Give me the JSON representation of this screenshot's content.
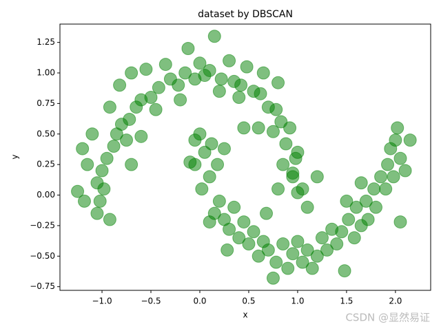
{
  "chart_data": {
    "type": "scatter",
    "title": "dataset by DBSCAN",
    "xlabel": "x",
    "ylabel": "y",
    "watermark": "CSDN @显然易证",
    "color": "#008000",
    "alpha": 0.5,
    "xlim": [
      -1.43,
      2.36
    ],
    "ylim": [
      -0.78,
      1.4
    ],
    "xticks": [
      {
        "value": -1.0,
        "label": "−1.0"
      },
      {
        "value": -0.5,
        "label": "−0.5"
      },
      {
        "value": 0.0,
        "label": "0.0"
      },
      0.5,
      {
        "value": 1.0,
        "label": "1.0"
      },
      1.5,
      {
        "value": 2.0,
        "label": "2.0"
      }
    ],
    "yticks": [
      {
        "value": -0.75,
        "label": "−0.75"
      },
      {
        "value": -0.5,
        "label": "−0.50"
      },
      {
        "value": -0.25,
        "label": "−0.25"
      },
      {
        "value": 0.0,
        "label": "0.00"
      },
      0.25,
      {
        "value": 0.5,
        "label": "0.50"
      },
      0.75,
      {
        "value": 1.0,
        "label": "1.00"
      },
      1.25
    ],
    "x": [
      1.0,
      0.95,
      0.98,
      0.88,
      0.92,
      0.83,
      0.78,
      0.8,
      0.7,
      0.62,
      0.55,
      0.48,
      0.42,
      0.35,
      0.3,
      0.22,
      0.15,
      0.1,
      0.05,
      0.0,
      -0.05,
      -0.12,
      -0.15,
      -0.22,
      -0.3,
      -0.35,
      -0.42,
      -0.5,
      -0.55,
      -0.6,
      -0.65,
      -0.7,
      -0.72,
      -0.8,
      -0.85,
      -0.82,
      -0.88,
      -0.92,
      -0.95,
      -1.0,
      -1.05,
      -0.98,
      -1.02,
      -1.1,
      -1.05,
      -0.92,
      -1.2,
      -1.25,
      -1.18,
      -0.7,
      -0.75,
      -0.6,
      -0.45,
      0.4,
      0.6,
      0.2,
      -0.2,
      0.85,
      0.75,
      0.45,
      0.65,
      -1.15,
      0.0,
      0.05,
      -0.05,
      0.1,
      0.02,
      0.12,
      0.2,
      0.15,
      0.25,
      0.3,
      0.35,
      0.4,
      0.45,
      0.5,
      0.55,
      0.6,
      0.65,
      0.7,
      0.78,
      0.75,
      0.85,
      0.9,
      0.95,
      1.0,
      1.05,
      1.1,
      1.15,
      1.2,
      1.25,
      1.3,
      1.35,
      1.4,
      1.48,
      1.45,
      1.52,
      1.58,
      1.6,
      1.65,
      1.7,
      1.72,
      1.78,
      1.8,
      1.85,
      1.9,
      1.92,
      1.95,
      2.0,
      2.02,
      1.98,
      2.05,
      2.15,
      2.1,
      1.65,
      2.05,
      0.25,
      0.18,
      -0.1,
      -0.05,
      0.8,
      1.05,
      1.1,
      1.2,
      0.95,
      1.0,
      0.68,
      1.5,
      0.1,
      0.28
    ],
    "y": [
      0.02,
      0.18,
      0.3,
      0.42,
      0.55,
      0.6,
      0.7,
      0.92,
      0.72,
      0.83,
      0.85,
      1.05,
      0.9,
      0.93,
      1.1,
      0.95,
      1.3,
      1.02,
      0.98,
      1.08,
      0.95,
      1.2,
      1.0,
      0.9,
      0.95,
      1.07,
      0.88,
      0.8,
      1.03,
      0.78,
      0.72,
      1.0,
      0.62,
      0.58,
      0.5,
      0.9,
      0.4,
      0.72,
      0.3,
      0.2,
      0.1,
      0.05,
      -0.05,
      0.5,
      -0.15,
      -0.2,
      0.38,
      0.03,
      -0.05,
      0.25,
      0.45,
      0.48,
      0.7,
      0.8,
      0.55,
      0.85,
      0.78,
      0.25,
      0.52,
      0.55,
      1.0,
      0.25,
      0.5,
      0.35,
      0.25,
      0.15,
      0.05,
      0.42,
      -0.05,
      -0.15,
      -0.2,
      -0.28,
      -0.1,
      -0.35,
      -0.22,
      -0.4,
      -0.3,
      -0.5,
      -0.38,
      -0.45,
      -0.55,
      -0.68,
      -0.4,
      -0.6,
      -0.48,
      -0.38,
      -0.55,
      -0.45,
      -0.6,
      -0.5,
      -0.35,
      -0.45,
      -0.28,
      -0.4,
      -0.62,
      -0.3,
      -0.2,
      -0.35,
      -0.1,
      -0.25,
      -0.05,
      -0.2,
      0.05,
      -0.1,
      0.15,
      0.05,
      0.25,
      0.38,
      0.45,
      0.55,
      0.15,
      0.3,
      0.45,
      0.2,
      0.1,
      -0.22,
      0.38,
      0.25,
      0.27,
      0.45,
      0.05,
      0.05,
      -0.1,
      0.15,
      0.15,
      0.35,
      -0.15,
      -0.05,
      -0.22,
      -0.45
    ]
  }
}
